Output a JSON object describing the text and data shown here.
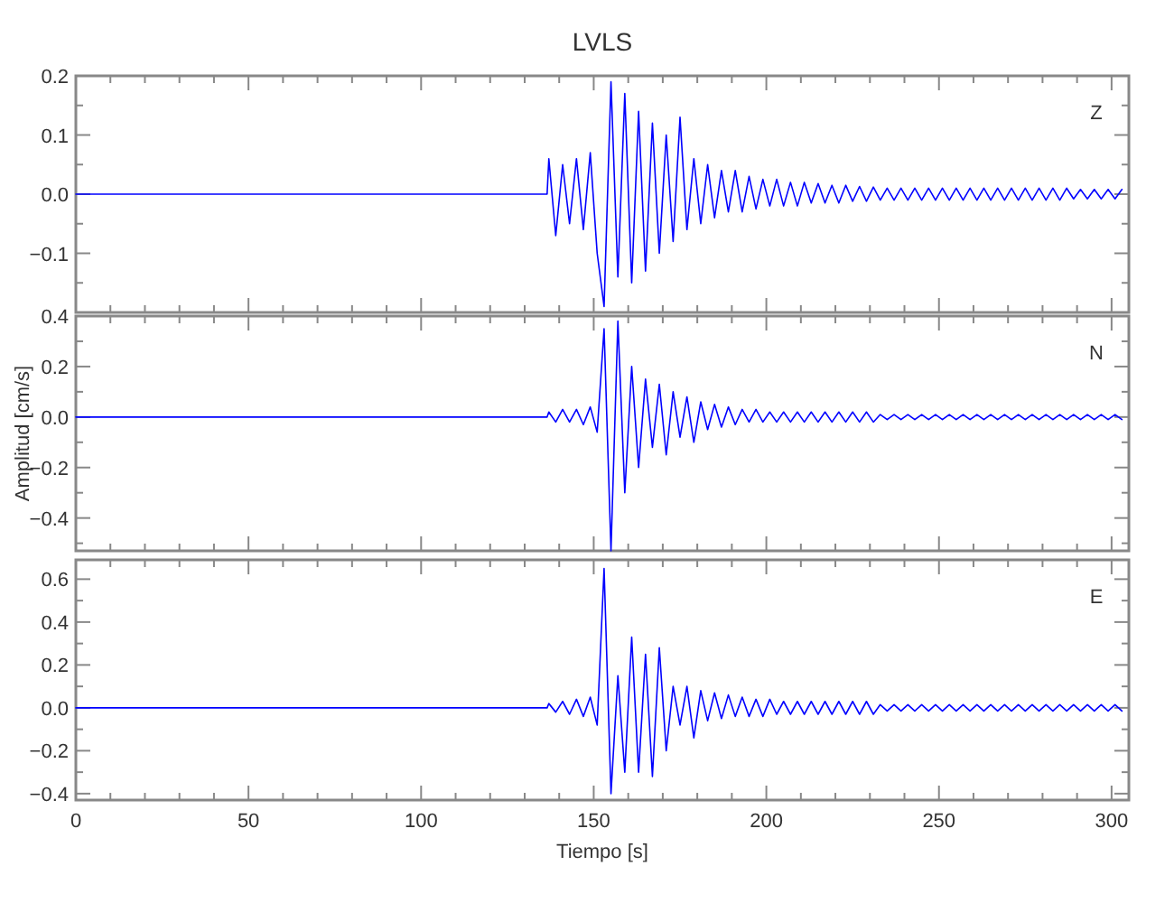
{
  "chart_data": [
    {
      "type": "line",
      "title": "LVLS",
      "annotations": [
        "Z"
      ],
      "tick_labels": "y",
      "xlim": [
        0,
        305
      ],
      "xticks": [
        0,
        {
          "value": 10,
          "label": null
        },
        {
          "value": 20,
          "label": null
        },
        {
          "value": 30,
          "label": null
        },
        {
          "value": 40,
          "label": null
        },
        50,
        {
          "value": 60,
          "label": null
        },
        {
          "value": 70,
          "label": null
        },
        {
          "value": 80,
          "label": null
        },
        {
          "value": 90,
          "label": null
        },
        100,
        {
          "value": 110,
          "label": null
        },
        {
          "value": 120,
          "label": null
        },
        {
          "value": 130,
          "label": null
        },
        {
          "value": 140,
          "label": null
        },
        150,
        {
          "value": 160,
          "label": null
        },
        {
          "value": 170,
          "label": null
        },
        {
          "value": 180,
          "label": null
        },
        {
          "value": 190,
          "label": null
        },
        200,
        {
          "value": 210,
          "label": null
        },
        {
          "value": 220,
          "label": null
        },
        {
          "value": 230,
          "label": null
        },
        {
          "value": 240,
          "label": null
        },
        250,
        {
          "value": 260,
          "label": null
        },
        {
          "value": 270,
          "label": null
        },
        {
          "value": 280,
          "label": null
        },
        {
          "value": 290,
          "label": null
        },
        300
      ],
      "ylim": [
        -0.2,
        0.2
      ],
      "yticks": [
        {
          "value": -0.2,
          "label": null
        },
        {
          "value": -0.15,
          "label": null
        },
        {
          "value": -0.1,
          "label": "−0.1"
        },
        {
          "value": -0.05,
          "label": null
        },
        {
          "value": 0,
          "label": "0.0"
        },
        {
          "value": 0.05,
          "label": null
        },
        0.1,
        {
          "value": 0.15,
          "label": null
        },
        0.2
      ],
      "x": [
        0,
        136.5,
        137,
        139,
        141,
        143,
        145,
        147,
        149,
        151,
        153,
        155,
        157,
        159,
        161,
        163,
        165,
        167,
        169,
        171,
        173,
        175,
        177,
        179,
        181,
        183,
        185,
        187,
        189,
        191,
        193,
        195,
        197,
        199,
        201,
        203,
        205,
        207,
        209,
        211,
        213,
        215,
        217,
        219,
        221,
        223,
        225,
        227,
        229,
        231,
        233,
        235,
        237,
        239,
        241,
        243,
        245,
        247,
        249,
        251,
        253,
        255,
        257,
        259,
        261,
        263,
        265,
        267,
        269,
        271,
        273,
        275,
        277,
        279,
        281,
        283,
        285,
        287,
        289,
        291,
        293,
        295,
        297,
        299,
        301,
        303
      ],
      "series": [
        {
          "color": "#0000ff",
          "values": [
            0,
            0,
            0.06,
            -0.07,
            0.05,
            -0.05,
            0.06,
            -0.06,
            0.07,
            -0.1,
            -0.19,
            0.19,
            -0.14,
            0.17,
            -0.15,
            0.14,
            -0.13,
            0.12,
            -0.1,
            0.1,
            -0.08,
            0.13,
            -0.06,
            0.06,
            -0.05,
            0.05,
            -0.04,
            0.04,
            -0.03,
            0.04,
            -0.03,
            0.03,
            -0.025,
            0.025,
            -0.02,
            0.025,
            -0.02,
            0.02,
            -0.02,
            0.02,
            -0.015,
            0.018,
            -0.015,
            0.015,
            -0.015,
            0.015,
            -0.012,
            0.013,
            -0.012,
            0.012,
            -0.01,
            0.01,
            -0.01,
            0.01,
            -0.01,
            0.01,
            -0.01,
            0.01,
            -0.01,
            0.01,
            -0.01,
            0.01,
            -0.01,
            0.01,
            -0.01,
            0.01,
            -0.01,
            0.01,
            -0.01,
            0.01,
            -0.01,
            0.01,
            -0.01,
            0.01,
            -0.01,
            0.01,
            -0.01,
            0.01,
            -0.008,
            0.008,
            -0.008,
            0.008,
            -0.008,
            0.008,
            -0.008,
            0.008
          ]
        }
      ]
    },
    {
      "type": "line",
      "ylabel": "Amplitud [cm/s]",
      "annotations": [
        "N"
      ],
      "tick_labels": "y",
      "xlim": [
        0,
        305
      ],
      "xticks": [
        0,
        {
          "value": 10,
          "label": null
        },
        {
          "value": 20,
          "label": null
        },
        {
          "value": 30,
          "label": null
        },
        {
          "value": 40,
          "label": null
        },
        50,
        {
          "value": 60,
          "label": null
        },
        {
          "value": 70,
          "label": null
        },
        {
          "value": 80,
          "label": null
        },
        {
          "value": 90,
          "label": null
        },
        100,
        {
          "value": 110,
          "label": null
        },
        {
          "value": 120,
          "label": null
        },
        {
          "value": 130,
          "label": null
        },
        {
          "value": 140,
          "label": null
        },
        150,
        {
          "value": 160,
          "label": null
        },
        {
          "value": 170,
          "label": null
        },
        {
          "value": 180,
          "label": null
        },
        {
          "value": 190,
          "label": null
        },
        200,
        {
          "value": 210,
          "label": null
        },
        {
          "value": 220,
          "label": null
        },
        {
          "value": 230,
          "label": null
        },
        {
          "value": 240,
          "label": null
        },
        250,
        {
          "value": 260,
          "label": null
        },
        {
          "value": 270,
          "label": null
        },
        {
          "value": 280,
          "label": null
        },
        {
          "value": 290,
          "label": null
        },
        300
      ],
      "ylim": [
        -0.53,
        0.4
      ],
      "yticks": [
        {
          "value": -0.5,
          "label": null
        },
        {
          "value": -0.4,
          "label": "−0.4"
        },
        {
          "value": -0.3,
          "label": null
        },
        {
          "value": -0.2,
          "label": "−0.2"
        },
        {
          "value": -0.1,
          "label": null
        },
        {
          "value": 0,
          "label": "0.0"
        },
        {
          "value": 0.1,
          "label": null
        },
        0.2,
        {
          "value": 0.3,
          "label": null
        },
        0.4
      ],
      "x": [
        0,
        136.5,
        137,
        139,
        141,
        143,
        145,
        147,
        149,
        151,
        153,
        155,
        157,
        159,
        161,
        163,
        165,
        167,
        169,
        171,
        173,
        175,
        177,
        179,
        181,
        183,
        185,
        187,
        189,
        191,
        193,
        195,
        197,
        199,
        201,
        203,
        205,
        207,
        209,
        211,
        213,
        215,
        217,
        219,
        221,
        223,
        225,
        227,
        229,
        231,
        233,
        235,
        237,
        239,
        241,
        243,
        245,
        247,
        249,
        251,
        253,
        255,
        257,
        259,
        261,
        263,
        265,
        267,
        269,
        271,
        273,
        275,
        277,
        279,
        281,
        283,
        285,
        287,
        289,
        291,
        293,
        295,
        297,
        299,
        301,
        303
      ],
      "series": [
        {
          "color": "#0000ff",
          "values": [
            0,
            0,
            0.02,
            -0.02,
            0.03,
            -0.02,
            0.03,
            -0.03,
            0.04,
            -0.06,
            0.35,
            -0.53,
            0.38,
            -0.3,
            0.2,
            -0.2,
            0.15,
            -0.12,
            0.13,
            -0.15,
            0.1,
            -0.08,
            0.08,
            -0.1,
            0.06,
            -0.05,
            0.05,
            -0.04,
            0.04,
            -0.03,
            0.03,
            -0.02,
            0.03,
            -0.02,
            0.02,
            -0.02,
            0.02,
            -0.02,
            0.02,
            -0.02,
            0.02,
            -0.02,
            0.02,
            -0.02,
            0.02,
            -0.02,
            0.02,
            -0.02,
            0.02,
            -0.02,
            0.01,
            -0.01,
            0.01,
            -0.01,
            0.01,
            -0.01,
            0.01,
            -0.01,
            0.01,
            -0.01,
            0.01,
            -0.01,
            0.01,
            -0.01,
            0.01,
            -0.01,
            0.01,
            -0.01,
            0.01,
            -0.01,
            0.01,
            -0.01,
            0.01,
            -0.01,
            0.01,
            -0.01,
            0.01,
            -0.01,
            0.01,
            -0.01,
            0.01,
            -0.01,
            0.01,
            -0.01,
            0.01,
            -0.01
          ]
        }
      ]
    },
    {
      "type": "line",
      "xlabel": "Tiempo [s]",
      "annotations": [
        "E"
      ],
      "xlim": [
        0,
        305
      ],
      "xticks": [
        0,
        {
          "value": 10,
          "label": null
        },
        {
          "value": 20,
          "label": null
        },
        {
          "value": 30,
          "label": null
        },
        {
          "value": 40,
          "label": null
        },
        50,
        {
          "value": 60,
          "label": null
        },
        {
          "value": 70,
          "label": null
        },
        {
          "value": 80,
          "label": null
        },
        {
          "value": 90,
          "label": null
        },
        100,
        {
          "value": 110,
          "label": null
        },
        {
          "value": 120,
          "label": null
        },
        {
          "value": 130,
          "label": null
        },
        {
          "value": 140,
          "label": null
        },
        150,
        {
          "value": 160,
          "label": null
        },
        {
          "value": 170,
          "label": null
        },
        {
          "value": 180,
          "label": null
        },
        {
          "value": 190,
          "label": null
        },
        200,
        {
          "value": 210,
          "label": null
        },
        {
          "value": 220,
          "label": null
        },
        {
          "value": 230,
          "label": null
        },
        {
          "value": 240,
          "label": null
        },
        250,
        {
          "value": 260,
          "label": null
        },
        {
          "value": 270,
          "label": null
        },
        {
          "value": 280,
          "label": null
        },
        {
          "value": 290,
          "label": null
        },
        300
      ],
      "ylim": [
        -0.43,
        0.69
      ],
      "yticks": [
        {
          "value": -0.4,
          "label": "−0.4"
        },
        {
          "value": -0.3,
          "label": null
        },
        {
          "value": -0.2,
          "label": "−0.2"
        },
        {
          "value": -0.1,
          "label": null
        },
        {
          "value": 0,
          "label": "0.0"
        },
        {
          "value": 0.1,
          "label": null
        },
        0.2,
        {
          "value": 0.3,
          "label": null
        },
        0.4,
        {
          "value": 0.5,
          "label": null
        },
        0.6
      ],
      "x": [
        0,
        136.5,
        137,
        139,
        141,
        143,
        145,
        147,
        149,
        151,
        153,
        155,
        157,
        159,
        161,
        163,
        165,
        167,
        169,
        171,
        173,
        175,
        177,
        179,
        181,
        183,
        185,
        187,
        189,
        191,
        193,
        195,
        197,
        199,
        201,
        203,
        205,
        207,
        209,
        211,
        213,
        215,
        217,
        219,
        221,
        223,
        225,
        227,
        229,
        231,
        233,
        235,
        237,
        239,
        241,
        243,
        245,
        247,
        249,
        251,
        253,
        255,
        257,
        259,
        261,
        263,
        265,
        267,
        269,
        271,
        273,
        275,
        277,
        279,
        281,
        283,
        285,
        287,
        289,
        291,
        293,
        295,
        297,
        299,
        301,
        303
      ],
      "series": [
        {
          "color": "#0000ff",
          "values": [
            0,
            0,
            0.02,
            -0.02,
            0.03,
            -0.03,
            0.04,
            -0.04,
            0.05,
            -0.08,
            0.65,
            -0.4,
            0.15,
            -0.3,
            0.33,
            -0.3,
            0.25,
            -0.32,
            0.28,
            -0.2,
            0.1,
            -0.08,
            0.1,
            -0.14,
            0.08,
            -0.06,
            0.07,
            -0.05,
            0.06,
            -0.04,
            0.05,
            -0.04,
            0.04,
            -0.04,
            0.04,
            -0.03,
            0.03,
            -0.03,
            0.03,
            -0.03,
            0.03,
            -0.03,
            0.03,
            -0.03,
            0.03,
            -0.03,
            0.03,
            -0.03,
            0.03,
            -0.03,
            0.015,
            -0.015,
            0.015,
            -0.015,
            0.015,
            -0.015,
            0.015,
            -0.015,
            0.015,
            -0.015,
            0.015,
            -0.015,
            0.015,
            -0.015,
            0.015,
            -0.015,
            0.015,
            -0.015,
            0.015,
            -0.015,
            0.015,
            -0.015,
            0.015,
            -0.015,
            0.015,
            -0.015,
            0.015,
            -0.015,
            0.015,
            -0.015,
            0.015,
            -0.015,
            0.015,
            -0.015,
            0.015,
            -0.015
          ]
        }
      ]
    }
  ]
}
